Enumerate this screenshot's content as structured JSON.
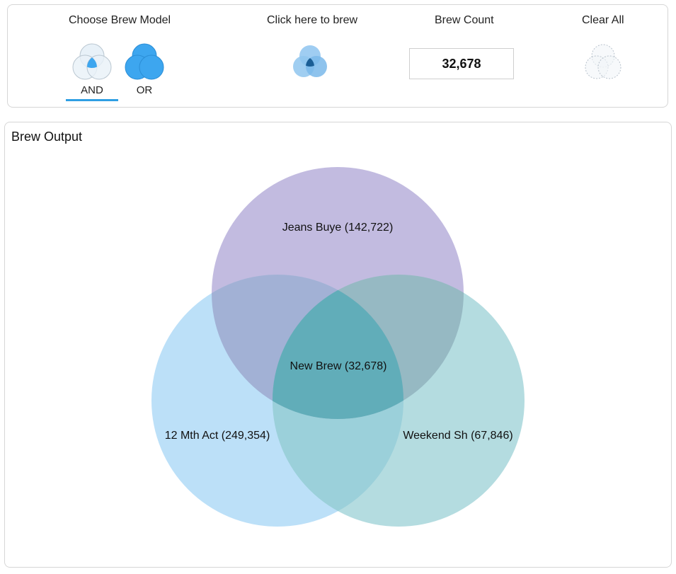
{
  "toolbar": {
    "choose_model_label": "Choose Brew Model",
    "brew_label": "Click here to brew",
    "count_label": "Brew Count",
    "clear_label": "Clear All",
    "modes": [
      {
        "label": "AND",
        "selected": true
      },
      {
        "label": "OR",
        "selected": false
      }
    ],
    "brew_count_value": "32,678",
    "accent_color": "#2f9fe3"
  },
  "output": {
    "title": "Brew Output",
    "sets": [
      {
        "label": "Jeans Buye (142,722)",
        "color": "#b3aad8"
      },
      {
        "label": "12 Mth Act (249,354)",
        "color": "#b0dbf7"
      },
      {
        "label": "Weekend Sh (67,846)",
        "color": "#a3d4d9"
      }
    ],
    "intersection_label": "New Brew (32,678)"
  }
}
